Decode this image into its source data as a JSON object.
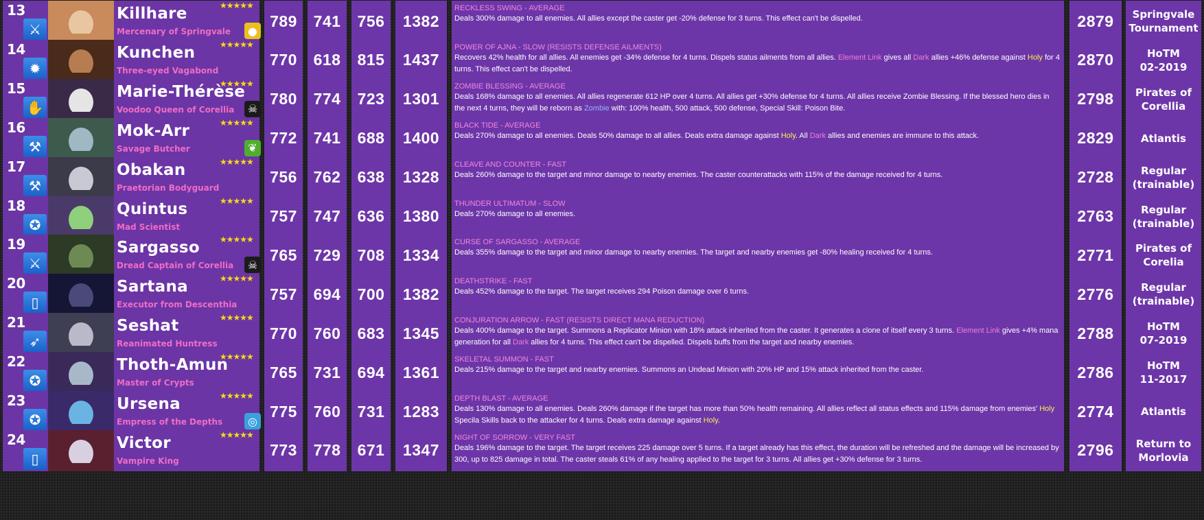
{
  "colors": {
    "cell_bg": "#6d36a8",
    "skill_name": "#f287e0",
    "hero_title": "#f06cc6",
    "holy": "#f9f150",
    "dark": "#ef7ed9",
    "class_icon_blue": "#2f7de0",
    "stars": "#f7d531"
  },
  "rows": [
    {
      "rank": "13",
      "class_icon": "crossed-swords-icon",
      "class_glyph": "⚔",
      "portrait_colors": [
        "#e9c6a2",
        "#c98a5c"
      ],
      "name": "Killhare",
      "title": "Mercenary of Springvale",
      "stars": "★★★★★",
      "costume_icon": "egg-icon",
      "costume_glyph": "●",
      "costume_color": "#e8c020",
      "attack": "789",
      "defense": "741",
      "health": "756",
      "power": "1382",
      "skill_name": "RECKLESS SWING - AVERAGE",
      "skill_parts": [
        {
          "t": "Deals 300% damage to all enemies. All allies except the caster get -20% defense for 3 turns. This effect can't be dispelled.",
          "c": ""
        }
      ],
      "total": "2879",
      "source": "Springvale\nTournament"
    },
    {
      "rank": "14",
      "class_icon": "sun-icon",
      "class_glyph": "✹",
      "portrait_colors": [
        "#b87c52",
        "#4a2a1a"
      ],
      "name": "Kunchen",
      "title": "Three-eyed Vagabond",
      "stars": "★★★★★",
      "costume_icon": "",
      "costume_glyph": "",
      "costume_color": "",
      "attack": "770",
      "defense": "618",
      "health": "815",
      "power": "1437",
      "skill_name": "POWER OF AJNA - SLOW (RESISTS DEFENSE AILMENTS)",
      "skill_parts": [
        {
          "t": "Recovers 42% health for all allies. All enemies get -34% defense for 4 turns. Dispels status ailments from all allies. ",
          "c": ""
        },
        {
          "t": "Element Link",
          "c": "k-link"
        },
        {
          "t": " gives all ",
          "c": ""
        },
        {
          "t": "Dark",
          "c": "k-dark"
        },
        {
          "t": " allies +46% defense against ",
          "c": ""
        },
        {
          "t": "Holy",
          "c": "k-holy"
        },
        {
          "t": " for 4 turns. This effect can't be dispelled.",
          "c": ""
        }
      ],
      "total": "2870",
      "source": "HoTM\n02-2019"
    },
    {
      "rank": "15",
      "class_icon": "hand-icon",
      "class_glyph": "✋",
      "portrait_colors": [
        "#e5e5e5",
        "#3a2a48"
      ],
      "name": "Marie-Thérèse",
      "title": "Voodoo Queen of Corellia",
      "stars": "★★★★★",
      "costume_icon": "skull-icon",
      "costume_glyph": "☠",
      "costume_color": "#1b1b1b",
      "attack": "780",
      "defense": "774",
      "health": "723",
      "power": "1301",
      "skill_name": "ZOMBIE BLESSING - AVERAGE",
      "skill_parts": [
        {
          "t": "Deals 168% damage to all enemies. All allies regenerate 612 HP over 4 turns. All allies get +30% defense for 4 turns. All allies receive Zombie Blessing. If the blessed hero dies in the next 4 turns, they will be reborn as ",
          "c": ""
        },
        {
          "t": "Zombie",
          "c": "k-zombie"
        },
        {
          "t": " with: 100% health, 500 attack, 500 defense, Special Skill: Poison Bite.",
          "c": ""
        }
      ],
      "total": "2798",
      "source": "Pirates of\nCorellia"
    },
    {
      "rank": "16",
      "class_icon": "hammer-icon",
      "class_glyph": "⚒",
      "portrait_colors": [
        "#9fb8c4",
        "#3d5a4c"
      ],
      "name": "Mok-Arr",
      "title": "Savage Butcher",
      "stars": "★★★★★",
      "costume_icon": "leaf-icon",
      "costume_glyph": "❦",
      "costume_color": "#4fae2e",
      "attack": "772",
      "defense": "741",
      "health": "688",
      "power": "1400",
      "skill_name": "BLACK TIDE - AVERAGE",
      "skill_parts": [
        {
          "t": "Deals 270% damage to all enemies. Deals 50% damage to all allies. Deals extra damage against ",
          "c": ""
        },
        {
          "t": "Holy",
          "c": "k-holy"
        },
        {
          "t": ". All ",
          "c": ""
        },
        {
          "t": "Dark",
          "c": "k-dark"
        },
        {
          "t": " allies and enemies are immune to this attack.",
          "c": ""
        }
      ],
      "total": "2829",
      "source": "Atlantis"
    },
    {
      "rank": "17",
      "class_icon": "hammer-icon",
      "class_glyph": "⚒",
      "portrait_colors": [
        "#c9c9d4",
        "#3b3b4a"
      ],
      "name": "Obakan",
      "title": "Praetorian Bodyguard",
      "stars": "★★★★★",
      "costume_icon": "",
      "costume_glyph": "",
      "costume_color": "",
      "attack": "756",
      "defense": "762",
      "health": "638",
      "power": "1328",
      "skill_name": "CLEAVE AND COUNTER - FAST",
      "skill_parts": [
        {
          "t": "Deals 260% damage to the target and minor damage to nearby enemies. The caster counterattacks with 115% of the damage received for 4 turns.",
          "c": ""
        }
      ],
      "total": "2728",
      "source": "Regular\n(trainable)"
    },
    {
      "rank": "18",
      "class_icon": "pentagram-icon",
      "class_glyph": "✪",
      "portrait_colors": [
        "#8fd07c",
        "#4a3a6a"
      ],
      "name": "Quintus",
      "title": "Mad Scientist",
      "stars": "★★★★★",
      "costume_icon": "",
      "costume_glyph": "",
      "costume_color": "",
      "attack": "757",
      "defense": "747",
      "health": "636",
      "power": "1380",
      "skill_name": "THUNDER ULTIMATUM - SLOW",
      "skill_parts": [
        {
          "t": "Deals 270% damage to all enemies.",
          "c": ""
        }
      ],
      "total": "2763",
      "source": "Regular\n(trainable)"
    },
    {
      "rank": "19",
      "class_icon": "crossed-swords-icon",
      "class_glyph": "⚔",
      "portrait_colors": [
        "#6d8a54",
        "#2c3a26"
      ],
      "name": "Sargasso",
      "title": "Dread Captain of Corellia",
      "stars": "★★★★★",
      "costume_icon": "skull-icon",
      "costume_glyph": "☠",
      "costume_color": "#1b1b1b",
      "attack": "765",
      "defense": "729",
      "health": "708",
      "power": "1334",
      "skill_name": "CURSE OF SARGASSO - AVERAGE",
      "skill_parts": [
        {
          "t": "Deals 355% damage to the target and minor damage to nearby enemies. The target and nearby enemies get -80% healing received for 4 turns.",
          "c": ""
        }
      ],
      "total": "2771",
      "source": "Pirates of\nCorelia"
    },
    {
      "rank": "20",
      "class_icon": "book-icon",
      "class_glyph": "▯",
      "portrait_colors": [
        "#4a4a7a",
        "#151535"
      ],
      "name": "Sartana",
      "title": "Executor from Descenthia",
      "stars": "★★★★★",
      "costume_icon": "",
      "costume_glyph": "",
      "costume_color": "",
      "attack": "757",
      "defense": "694",
      "health": "700",
      "power": "1382",
      "skill_name": "DEATHSTRIKE - FAST",
      "skill_parts": [
        {
          "t": "Deals 452% damage to the target. The target receives 294 Poison damage over 6 turns.",
          "c": ""
        }
      ],
      "total": "2776",
      "source": "Regular\n(trainable)"
    },
    {
      "rank": "21",
      "class_icon": "bow-icon",
      "class_glyph": "➶",
      "portrait_colors": [
        "#b9b9c9",
        "#3f3f54"
      ],
      "name": "Seshat",
      "title": "Reanimated Huntress",
      "stars": "★★★★★",
      "costume_icon": "",
      "costume_glyph": "",
      "costume_color": "",
      "attack": "770",
      "defense": "760",
      "health": "683",
      "power": "1345",
      "skill_name": "CONJURATION ARROW - FAST (RESISTS DIRECT MANA REDUCTION)",
      "skill_parts": [
        {
          "t": "Deals 400% damage to the target. Summons a Replicator Minion with 18% attack inherited from the caster. It generates a clone of itself every 3 turns. ",
          "c": ""
        },
        {
          "t": "Element Link",
          "c": "k-link"
        },
        {
          "t": " gives +4% mana generation for all ",
          "c": ""
        },
        {
          "t": "Dark",
          "c": "k-dark"
        },
        {
          "t": " allies for 4 turns. This effect can't be dispelled. Dispels buffs from the target and nearby enemies.",
          "c": ""
        }
      ],
      "total": "2788",
      "source": "HoTM\n07-2019"
    },
    {
      "rank": "22",
      "class_icon": "pentagram-icon",
      "class_glyph": "✪",
      "portrait_colors": [
        "#a8b8c8",
        "#3a2a5a"
      ],
      "name": "Thoth-Amun",
      "title": "Master of Crypts",
      "stars": "★★★★★",
      "costume_icon": "",
      "costume_glyph": "",
      "costume_color": "",
      "attack": "765",
      "defense": "731",
      "health": "694",
      "power": "1361",
      "skill_name": "SKELETAL SUMMON - FAST",
      "skill_parts": [
        {
          "t": "Deals 215% damage to the target and nearby enemies. Summons an Undead Minion with 20% HP and 15% attack inherited from the caster.",
          "c": ""
        }
      ],
      "total": "2786",
      "source": "HoTM\n11-2017"
    },
    {
      "rank": "23",
      "class_icon": "pentagram-icon",
      "class_glyph": "✪",
      "portrait_colors": [
        "#6ab4e4",
        "#3a2a6a"
      ],
      "name": "Ursena",
      "title": "Empress of the Depths",
      "stars": "★★★★★",
      "costume_icon": "wave-icon",
      "costume_glyph": "◎",
      "costume_color": "#3aa0e0",
      "attack": "775",
      "defense": "760",
      "health": "731",
      "power": "1283",
      "skill_name": "DEPTH BLAST - AVERAGE",
      "skill_parts": [
        {
          "t": "Deals 130% damage to all enemies. Deals 260% damage if the target has more than 50% health remaining. All allies reflect all status effects and 115% damage from enemies' ",
          "c": ""
        },
        {
          "t": "Holy",
          "c": "k-holy"
        },
        {
          "t": " Specila Skills back to the attacker for 4 turns. Deals extra damage against ",
          "c": ""
        },
        {
          "t": "Holy",
          "c": "k-holy"
        },
        {
          "t": ".",
          "c": ""
        }
      ],
      "total": "2774",
      "source": "Atlantis"
    },
    {
      "rank": "24",
      "class_icon": "book-icon",
      "class_glyph": "▯",
      "portrait_colors": [
        "#d8d0e0",
        "#5a2030"
      ],
      "name": "Victor",
      "title": "Vampire King",
      "stars": "★★★★★",
      "costume_icon": "",
      "costume_glyph": "",
      "costume_color": "",
      "attack": "773",
      "defense": "778",
      "health": "671",
      "power": "1347",
      "skill_name": "NIGHT OF SORROW - VERY FAST",
      "skill_parts": [
        {
          "t": "Deals 196% damage to the target. The target receives 225 damage over 5 turns. If a target already has this effect, the duration will be refreshed and the damage will be increased by 300, up to 825 damage in total. The caster steals 61% of any healing applied to the target for 3 turns. All allies get +30% defense for 3 turns.",
          "c": ""
        }
      ],
      "total": "2796",
      "source": "Return to\nMorlovia"
    }
  ]
}
